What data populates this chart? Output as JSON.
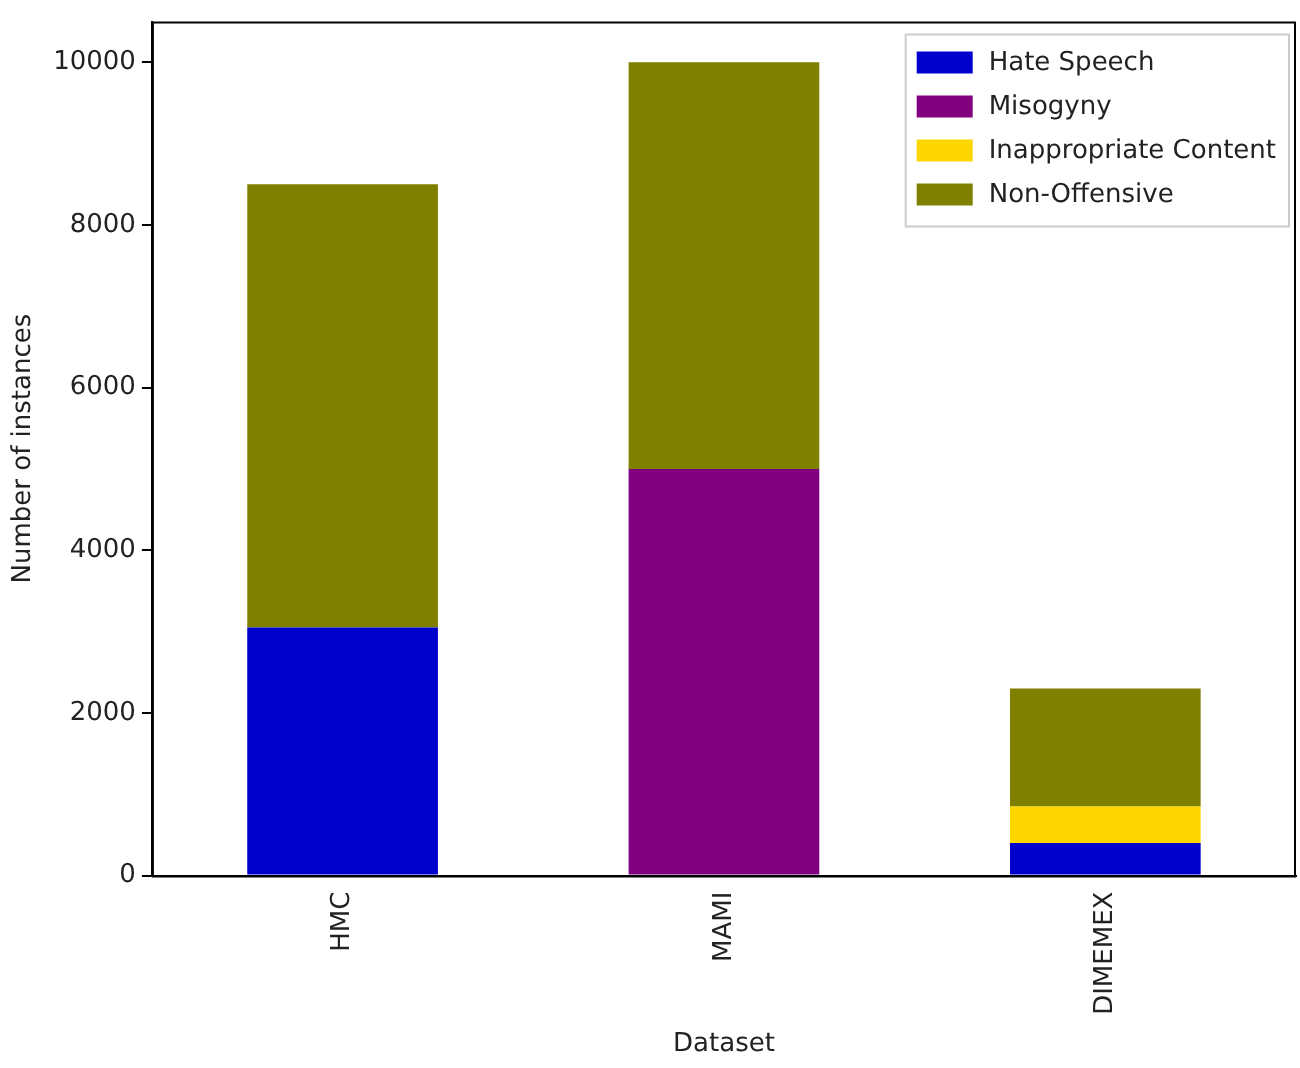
{
  "chart_data": {
    "type": "bar",
    "stacked": true,
    "xlabel": "Dataset",
    "ylabel": "Number of instances",
    "categories": [
      "HMC",
      "MAMI",
      "DIMEMEX"
    ],
    "series": [
      {
        "name": "Hate Speech",
        "color": "#0000cd",
        "values": [
          3050,
          0,
          400
        ]
      },
      {
        "name": "Misogyny",
        "color": "#800080",
        "values": [
          0,
          5000,
          0
        ]
      },
      {
        "name": "Inappropriate Content",
        "color": "#ffd700",
        "values": [
          0,
          0,
          450
        ]
      },
      {
        "name": "Non-Offensive",
        "color": "#808000",
        "values": [
          5450,
          5000,
          1450
        ]
      }
    ],
    "ylim": [
      0,
      10500
    ],
    "yticks": [
      0,
      2000,
      4000,
      6000,
      8000,
      10000
    ],
    "grid": false,
    "legend": "top right"
  }
}
